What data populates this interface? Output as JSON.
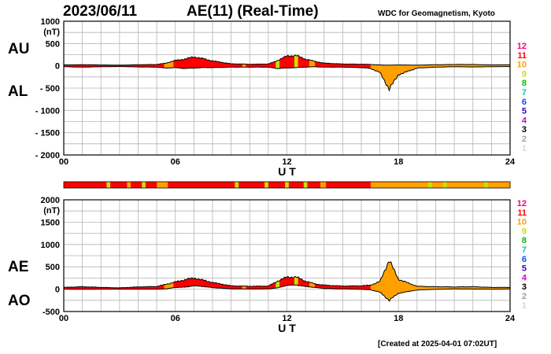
{
  "header": {
    "date": "2023/06/11",
    "title": "AE(11) (Real-Time)",
    "source": "WDC for Geomagnetism, Kyoto",
    "created": "[Created at 2025-04-01 07:02UT]"
  },
  "colors": {
    "activity": {
      "1": "#d8d8d8",
      "2": "#a0a0a0",
      "3": "#000000",
      "4": "#d400d4",
      "5": "#3a00b4",
      "6": "#0050ff",
      "7": "#00c8c8",
      "8": "#00c000",
      "9": "#c8e000",
      "10": "#ffa000",
      "11": "#ff0000",
      "12": "#ff0080"
    },
    "grid": "#b4b4b4",
    "outline": "#000000"
  },
  "chart_data": [
    {
      "type": "area",
      "panel": "au-al",
      "series": [
        {
          "name": "AU",
          "x": [
            0,
            1,
            2,
            3,
            4,
            5,
            5.5,
            6,
            6.5,
            7,
            7.5,
            8,
            9,
            10,
            11,
            11.5,
            12,
            12.5,
            13,
            13.5,
            14,
            15,
            16,
            16.5,
            17,
            17.5,
            18,
            19,
            20,
            21,
            22,
            23,
            24
          ],
          "values": [
            20,
            25,
            20,
            15,
            25,
            30,
            60,
            120,
            150,
            200,
            160,
            110,
            45,
            35,
            40,
            120,
            220,
            230,
            150,
            100,
            60,
            40,
            35,
            30,
            20,
            15,
            20,
            15,
            25,
            30,
            30,
            20,
            25
          ]
        },
        {
          "name": "AL",
          "x": [
            0,
            1,
            2,
            3,
            4,
            5,
            5.5,
            6,
            6.5,
            7,
            7.5,
            8,
            9,
            10,
            11,
            11.5,
            12,
            12.5,
            13,
            13.5,
            14,
            15,
            16,
            16.5,
            17,
            17.5,
            18,
            19,
            20,
            21,
            22,
            23,
            24
          ],
          "values": [
            -20,
            -30,
            -20,
            -15,
            -25,
            -30,
            -50,
            -40,
            -60,
            -50,
            -40,
            -40,
            -30,
            -30,
            -30,
            -60,
            -50,
            -40,
            -30,
            -20,
            -30,
            -30,
            -40,
            -60,
            -150,
            -520,
            -200,
            -50,
            -30,
            -20,
            -25,
            -20,
            -15
          ]
        }
      ],
      "ylabel_top": "AU",
      "ylabel_bottom": "AL",
      "unit": "(nT)",
      "xlabel": "U T",
      "xlim": [
        0,
        24
      ],
      "ylim": [
        -2000,
        1000
      ],
      "xticks": [
        "00",
        "06",
        "12",
        "18",
        "24"
      ],
      "xtick_values": [
        0,
        6,
        12,
        18,
        24
      ],
      "yticks": [
        "1000",
        "500",
        "0",
        "- 500",
        "- 1000",
        "- 1500",
        "- 2000"
      ],
      "ytick_values": [
        1000,
        500,
        0,
        -500,
        -1000,
        -1500,
        -2000
      ],
      "grid": true
    },
    {
      "type": "area",
      "panel": "ae-ao",
      "series": [
        {
          "name": "AE",
          "x": [
            0,
            1,
            2,
            3,
            4,
            5,
            5.5,
            6,
            6.5,
            7,
            7.5,
            8,
            9,
            10,
            11,
            11.5,
            12,
            12.5,
            13,
            13.5,
            14,
            15,
            16,
            16.5,
            17,
            17.5,
            18,
            19,
            20,
            21,
            22,
            23,
            24
          ],
          "values": [
            40,
            55,
            40,
            30,
            50,
            60,
            110,
            160,
            210,
            250,
            200,
            150,
            75,
            65,
            70,
            180,
            270,
            270,
            180,
            120,
            90,
            70,
            75,
            90,
            170,
            650,
            220,
            65,
            55,
            50,
            55,
            40,
            40
          ]
        },
        {
          "name": "AO",
          "x": [
            0,
            1,
            2,
            3,
            4,
            5,
            5.5,
            6,
            6.5,
            7,
            7.5,
            8,
            9,
            10,
            11,
            11.5,
            12,
            12.5,
            13,
            13.5,
            14,
            15,
            16,
            16.5,
            17,
            17.5,
            18,
            19,
            20,
            21,
            22,
            23,
            24
          ],
          "values": [
            0,
            -3,
            0,
            0,
            0,
            0,
            5,
            40,
            45,
            75,
            60,
            35,
            8,
            3,
            5,
            30,
            85,
            95,
            60,
            40,
            15,
            5,
            -3,
            -15,
            -65,
            -250,
            -90,
            -18,
            -3,
            5,
            3,
            0,
            5
          ]
        }
      ],
      "ylabel_top": "AE",
      "ylabel_bottom": "AO",
      "unit": "(nT)",
      "xlabel": "U T",
      "xlim": [
        0,
        24
      ],
      "ylim": [
        -500,
        2000
      ],
      "xticks": [
        "00",
        "06",
        "12",
        "18",
        "24"
      ],
      "xtick_values": [
        0,
        6,
        12,
        18,
        24
      ],
      "yticks": [
        "2000",
        "1500",
        "1000",
        "500",
        "0",
        "-500"
      ],
      "ytick_values": [
        2000,
        1500,
        1000,
        500,
        0,
        -500
      ],
      "grid": true
    }
  ],
  "legend": {
    "levels": [
      "12",
      "11",
      "10",
      "9",
      "8",
      "7",
      "6",
      "5",
      "4",
      "3",
      "2",
      "1"
    ]
  },
  "activity_bar": {
    "segments": [
      {
        "start": 0,
        "end": 2.3,
        "level": "11"
      },
      {
        "start": 2.3,
        "end": 2.5,
        "level": "9"
      },
      {
        "start": 2.5,
        "end": 3.4,
        "level": "11"
      },
      {
        "start": 3.4,
        "end": 3.6,
        "level": "10"
      },
      {
        "start": 3.6,
        "end": 4.2,
        "level": "11"
      },
      {
        "start": 4.2,
        "end": 4.4,
        "level": "9"
      },
      {
        "start": 4.4,
        "end": 5.0,
        "level": "11"
      },
      {
        "start": 5.0,
        "end": 5.6,
        "level": "10"
      },
      {
        "start": 5.6,
        "end": 9.2,
        "level": "11"
      },
      {
        "start": 9.2,
        "end": 9.4,
        "level": "9"
      },
      {
        "start": 9.4,
        "end": 10.8,
        "level": "11"
      },
      {
        "start": 10.8,
        "end": 11.0,
        "level": "9"
      },
      {
        "start": 11.0,
        "end": 11.9,
        "level": "11"
      },
      {
        "start": 11.9,
        "end": 12.1,
        "level": "9"
      },
      {
        "start": 12.1,
        "end": 12.9,
        "level": "11"
      },
      {
        "start": 12.9,
        "end": 13.1,
        "level": "9"
      },
      {
        "start": 13.1,
        "end": 13.8,
        "level": "11"
      },
      {
        "start": 13.8,
        "end": 14.1,
        "level": "10"
      },
      {
        "start": 14.1,
        "end": 16.5,
        "level": "11"
      },
      {
        "start": 16.5,
        "end": 19.6,
        "level": "10"
      },
      {
        "start": 19.6,
        "end": 19.8,
        "level": "9"
      },
      {
        "start": 19.8,
        "end": 20.4,
        "level": "10"
      },
      {
        "start": 20.4,
        "end": 20.6,
        "level": "9"
      },
      {
        "start": 20.6,
        "end": 22.6,
        "level": "10"
      },
      {
        "start": 22.6,
        "end": 22.8,
        "level": "9"
      },
      {
        "start": 22.8,
        "end": 24,
        "level": "10"
      }
    ]
  },
  "panel_activity": {
    "segments": [
      {
        "start": 0,
        "end": 5.4,
        "level": "11"
      },
      {
        "start": 5.4,
        "end": 5.9,
        "level": "10"
      },
      {
        "start": 5.9,
        "end": 9.6,
        "level": "11"
      },
      {
        "start": 9.6,
        "end": 9.8,
        "level": "10"
      },
      {
        "start": 9.8,
        "end": 11.4,
        "level": "11"
      },
      {
        "start": 11.4,
        "end": 11.6,
        "level": "9"
      },
      {
        "start": 11.6,
        "end": 12.4,
        "level": "11"
      },
      {
        "start": 12.4,
        "end": 12.6,
        "level": "9"
      },
      {
        "start": 12.6,
        "end": 13.2,
        "level": "11"
      },
      {
        "start": 13.2,
        "end": 13.5,
        "level": "10"
      },
      {
        "start": 13.5,
        "end": 16.5,
        "level": "11"
      },
      {
        "start": 16.5,
        "end": 24,
        "level": "10"
      }
    ]
  }
}
